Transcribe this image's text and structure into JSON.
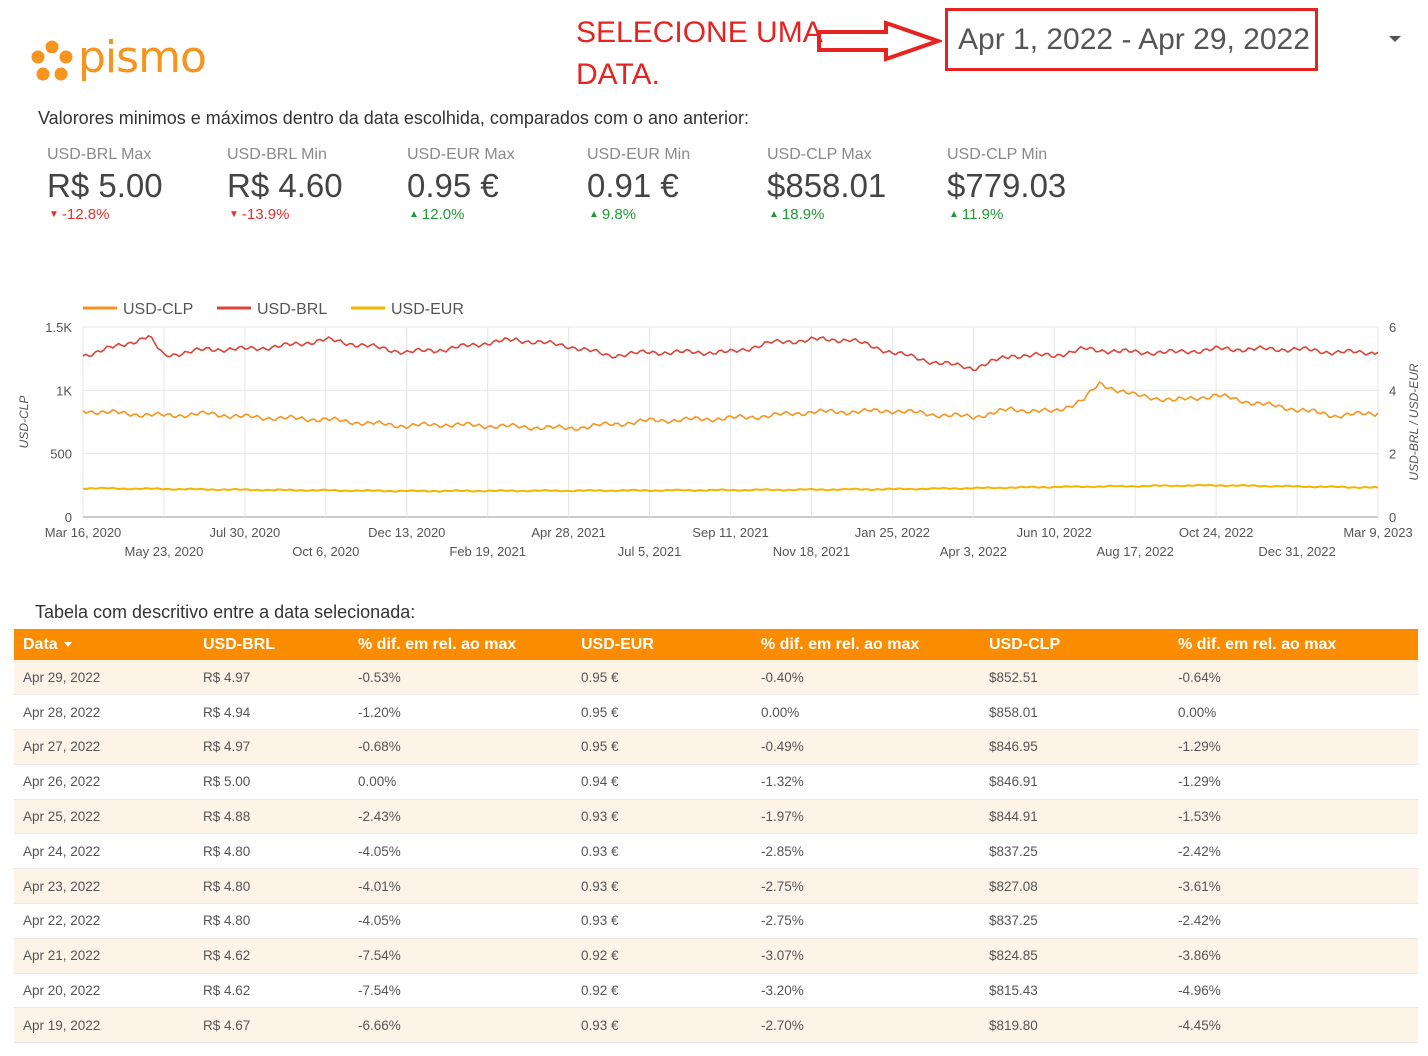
{
  "brand": {
    "logo_text": "pismo",
    "color": "#f7941d"
  },
  "annotation": {
    "line1": "SELECIONE UMA",
    "line2": "DATA.",
    "color": "#e52421"
  },
  "date_range": {
    "value": "Apr 1, 2022 - Apr 29, 2022"
  },
  "intro_text": "Valorores minimos e máximos dentro da data escolhida, comparados com o ano anterior:",
  "kpis": [
    {
      "label": "USD-BRL Max",
      "value": "R$ 5.00",
      "delta": "-12.8%",
      "direction": "down"
    },
    {
      "label": "USD-BRL Min",
      "value": "R$ 4.60",
      "delta": "-13.9%",
      "direction": "down"
    },
    {
      "label": "USD-EUR Max",
      "value": "0.95 €",
      "delta": "12.0%",
      "direction": "up"
    },
    {
      "label": "USD-EUR Min",
      "value": "0.91 €",
      "delta": "9.8%",
      "direction": "up"
    },
    {
      "label": "USD-CLP Max",
      "value": "$858.01",
      "delta": "18.9%",
      "direction": "up"
    },
    {
      "label": "USD-CLP Min",
      "value": "$779.03",
      "delta": "11.9%",
      "direction": "up"
    }
  ],
  "chart_data": {
    "type": "line",
    "legend": [
      {
        "name": "USD-CLP",
        "color": "#f7941d"
      },
      {
        "name": "USD-BRL",
        "color": "#db4437"
      },
      {
        "name": "USD-EUR",
        "color": "#f4b400"
      }
    ],
    "legend_position": "top-left",
    "ylabel_left": "USD-CLP",
    "ylabel_right": "USD-BRL / USD-EUR",
    "y_left": {
      "ticks": [
        "0",
        "500",
        "1K",
        "1.5K"
      ],
      "range": [
        0,
        1500
      ]
    },
    "y_right": {
      "ticks": [
        "0",
        "2",
        "4",
        "6"
      ],
      "range": [
        0,
        6
      ]
    },
    "x_range": [
      "Mar 16, 2020",
      "Mar 9, 2023"
    ],
    "x_ticks_row1": [
      "Mar 16, 2020",
      "Jul 30, 2020",
      "Dec 13, 2020",
      "Apr 28, 2021",
      "Sep 11, 2021",
      "Jan 25, 2022",
      "Jun 10, 2022",
      "Oct 24, 2022",
      "Mar 9, 2023"
    ],
    "x_ticks_row2": [
      "May 23, 2020",
      "Oct 6, 2020",
      "Feb 19, 2021",
      "Jul 5, 2021",
      "Nov 18, 2021",
      "Apr 3, 2022",
      "Aug 17, 2022",
      "Dec 31, 2022"
    ],
    "grid": true,
    "series": [
      {
        "name": "USD-CLP",
        "axis": "left",
        "x": [
          "2020-03-16",
          "2020-04-15",
          "2020-05-23",
          "2020-06-30",
          "2020-07-30",
          "2020-09-01",
          "2020-10-06",
          "2020-11-10",
          "2020-12-13",
          "2021-01-15",
          "2021-02-19",
          "2021-03-25",
          "2021-04-28",
          "2021-06-01",
          "2021-07-05",
          "2021-08-10",
          "2021-09-11",
          "2021-10-15",
          "2021-11-18",
          "2021-12-20",
          "2022-01-25",
          "2022-02-28",
          "2022-04-03",
          "2022-05-05",
          "2022-06-10",
          "2022-07-05",
          "2022-07-18",
          "2022-08-17",
          "2022-09-20",
          "2022-10-24",
          "2022-11-25",
          "2022-12-31",
          "2023-02-01",
          "2023-03-09"
        ],
        "y": [
          840,
          820,
          800,
          815,
          790,
          780,
          770,
          740,
          720,
          730,
          720,
          710,
          700,
          730,
          760,
          770,
          780,
          800,
          830,
          830,
          840,
          810,
          790,
          850,
          830,
          930,
          1050,
          960,
          920,
          960,
          900,
          850,
          800,
          820
        ]
      },
      {
        "name": "USD-BRL",
        "axis": "right",
        "x": [
          "2020-03-16",
          "2020-04-15",
          "2020-05-10",
          "2020-05-23",
          "2020-06-30",
          "2020-07-30",
          "2020-09-01",
          "2020-10-06",
          "2020-11-10",
          "2020-12-13",
          "2021-01-15",
          "2021-02-19",
          "2021-03-15",
          "2021-04-28",
          "2021-06-01",
          "2021-07-05",
          "2021-08-10",
          "2021-09-11",
          "2021-10-15",
          "2021-11-18",
          "2021-12-20",
          "2022-01-25",
          "2022-02-28",
          "2022-04-03",
          "2022-05-05",
          "2022-06-10",
          "2022-07-05",
          "2022-08-17",
          "2022-09-20",
          "2022-10-24",
          "2022-11-25",
          "2022-12-31",
          "2023-02-01",
          "2023-03-09"
        ],
        "y": [
          5.1,
          5.4,
          5.7,
          5.1,
          5.3,
          5.3,
          5.4,
          5.6,
          5.4,
          5.2,
          5.3,
          5.5,
          5.6,
          5.4,
          5.1,
          5.2,
          5.2,
          5.2,
          5.5,
          5.6,
          5.6,
          5.2,
          4.9,
          4.7,
          5.1,
          5.1,
          5.3,
          5.2,
          5.2,
          5.3,
          5.3,
          5.3,
          5.2,
          5.2
        ]
      },
      {
        "name": "USD-EUR",
        "axis": "right",
        "x": [
          "2020-03-16",
          "2020-07-30",
          "2020-12-13",
          "2021-04-28",
          "2021-09-11",
          "2022-01-25",
          "2022-04-03",
          "2022-06-10",
          "2022-10-24",
          "2023-03-09"
        ],
        "y": [
          0.91,
          0.86,
          0.82,
          0.83,
          0.85,
          0.88,
          0.91,
          0.95,
          1.0,
          0.93
        ]
      }
    ]
  },
  "table_title": "Tabela com descritivo entre a data selecionada:",
  "table": {
    "headers": [
      "Data",
      "USD-BRL",
      "% dif. em rel. ao max",
      "USD-EUR",
      "% dif. em rel. ao max",
      "USD-CLP",
      "% dif. em rel. ao max"
    ],
    "rows": [
      [
        "Apr 29, 2022",
        "R$ 4.97",
        "-0.53%",
        "0.95 €",
        "-0.40%",
        "$852.51",
        "-0.64%"
      ],
      [
        "Apr 28, 2022",
        "R$ 4.94",
        "-1.20%",
        "0.95 €",
        "0.00%",
        "$858.01",
        "0.00%"
      ],
      [
        "Apr 27, 2022",
        "R$ 4.97",
        "-0.68%",
        "0.95 €",
        "-0.49%",
        "$846.95",
        "-1.29%"
      ],
      [
        "Apr 26, 2022",
        "R$ 5.00",
        "0.00%",
        "0.94 €",
        "-1.32%",
        "$846.91",
        "-1.29%"
      ],
      [
        "Apr 25, 2022",
        "R$ 4.88",
        "-2.43%",
        "0.93 €",
        "-1.97%",
        "$844.91",
        "-1.53%"
      ],
      [
        "Apr 24, 2022",
        "R$ 4.80",
        "-4.05%",
        "0.93 €",
        "-2.85%",
        "$837.25",
        "-2.42%"
      ],
      [
        "Apr 23, 2022",
        "R$ 4.80",
        "-4.01%",
        "0.93 €",
        "-2.75%",
        "$827.08",
        "-3.61%"
      ],
      [
        "Apr 22, 2022",
        "R$ 4.80",
        "-4.05%",
        "0.93 €",
        "-2.75%",
        "$837.25",
        "-2.42%"
      ],
      [
        "Apr 21, 2022",
        "R$ 4.62",
        "-7.54%",
        "0.92 €",
        "-3.07%",
        "$824.85",
        "-3.86%"
      ],
      [
        "Apr 20, 2022",
        "R$ 4.62",
        "-7.54%",
        "0.92 €",
        "-3.20%",
        "$815.43",
        "-4.96%"
      ],
      [
        "Apr 19, 2022",
        "R$ 4.67",
        "-6.66%",
        "0.93 €",
        "-2.70%",
        "$819.80",
        "-4.45%"
      ]
    ]
  },
  "colors": {
    "table_header": "#fb8c00",
    "row_alt": "#fef3e7",
    "up": "#1d9a35",
    "down": "#e0342c"
  }
}
